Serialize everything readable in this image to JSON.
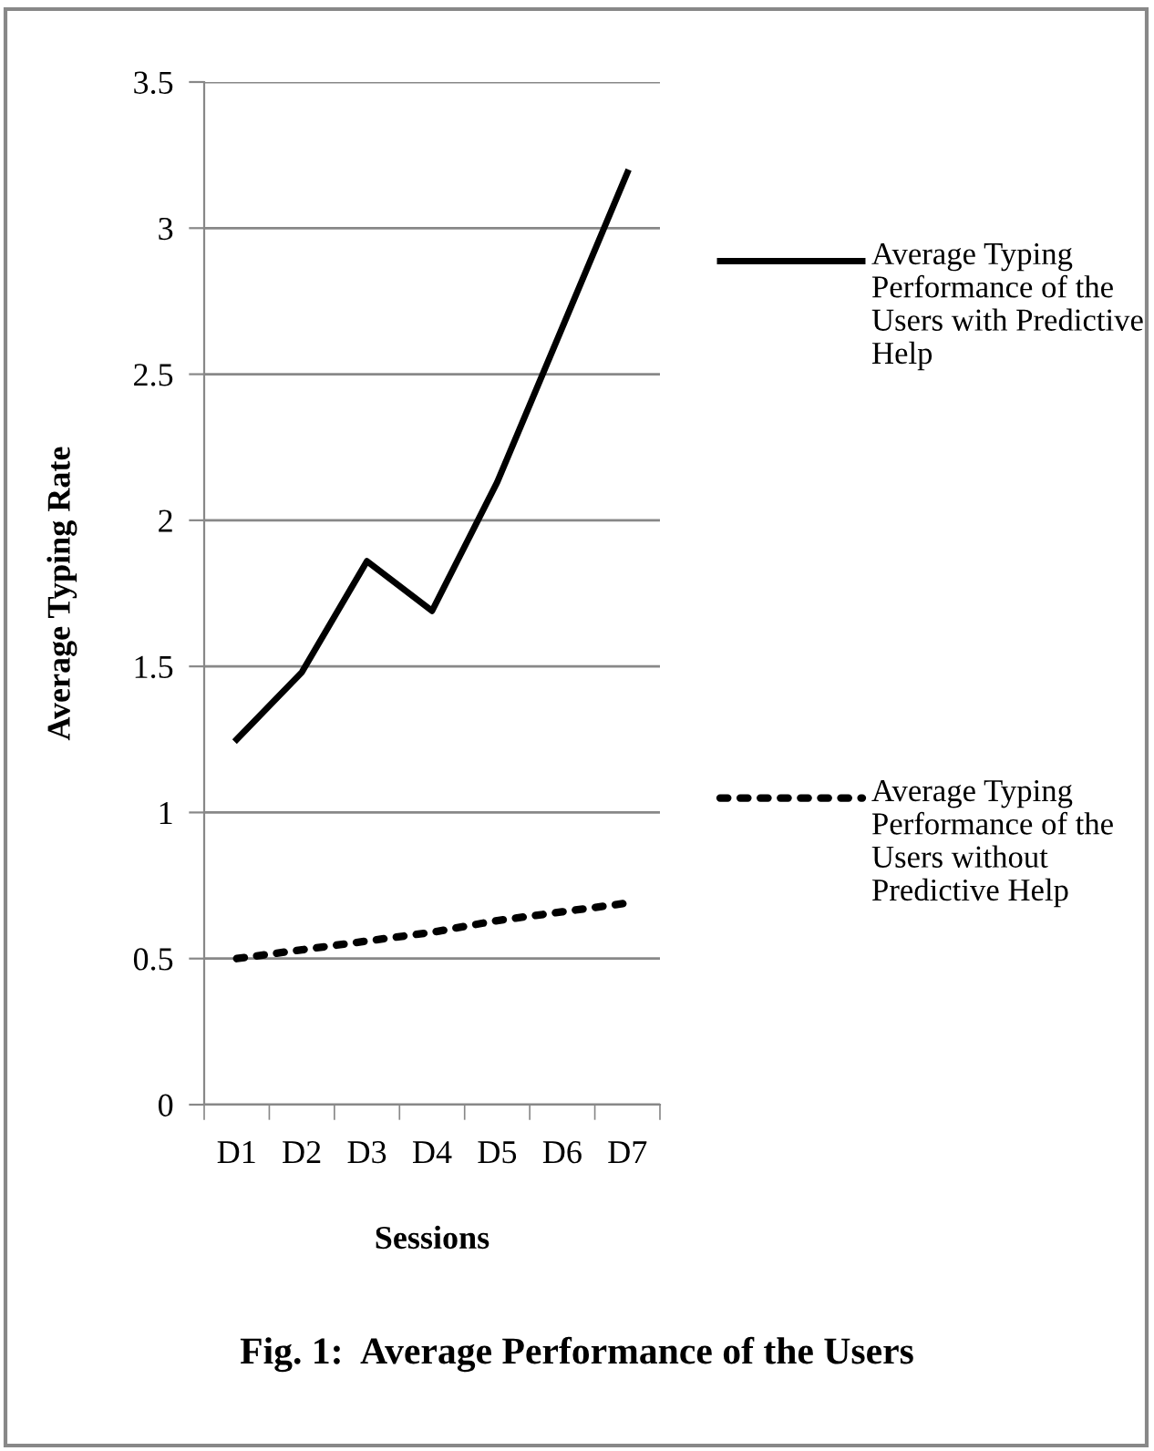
{
  "chart_data": {
    "type": "line",
    "title": "Fig. 1:  Average Performance of the Users",
    "xlabel": "Sessions",
    "ylabel": "Average Typing Rate",
    "categories": [
      "D1",
      "D2",
      "D3",
      "D4",
      "D5",
      "D6",
      "D7"
    ],
    "series": [
      {
        "name": "Average Typing Performance of the Users with Predictive Help",
        "color": "#000000",
        "line_style": "solid",
        "values": [
          1.25,
          1.48,
          1.86,
          1.69,
          2.13,
          2.66,
          3.19
        ]
      },
      {
        "name": "Average Typing Performance of the Users without Predictive Help",
        "color": "#000000",
        "line_style": "dotted",
        "values": [
          0.5,
          0.53,
          0.56,
          0.59,
          0.63,
          0.66,
          0.69
        ]
      }
    ],
    "ylim": [
      0,
      3.5
    ],
    "yticks": [
      0,
      0.5,
      1,
      1.5,
      2,
      2.5,
      3,
      3.5
    ],
    "grid": "y",
    "legend": "right"
  }
}
